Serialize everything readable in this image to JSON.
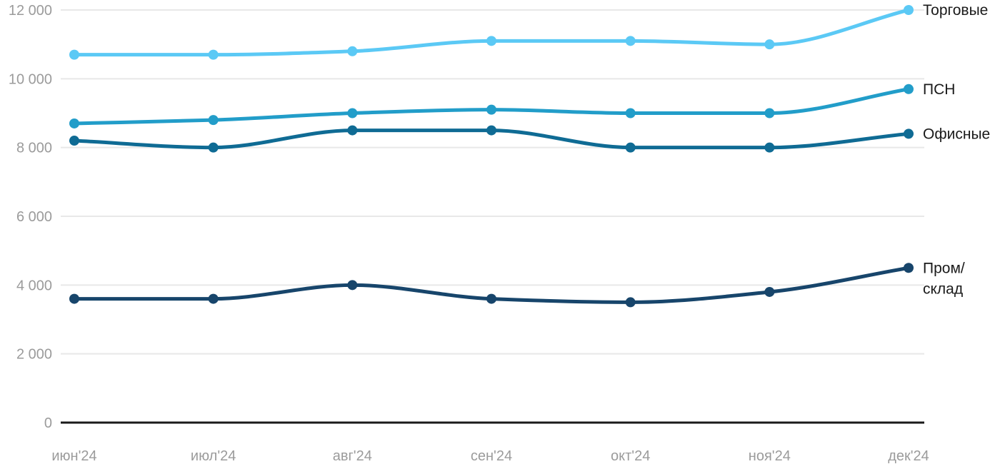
{
  "chart_data": {
    "type": "line",
    "title": "",
    "xlabel": "",
    "ylabel": "",
    "categories": [
      "июн'24",
      "июл'24",
      "авг'24",
      "сен'24",
      "окт'24",
      "ноя'24",
      "дек'24"
    ],
    "series": [
      {
        "name": "Торговые",
        "label_lines": [
          "Торговые"
        ],
        "color": "#5BC9F5",
        "values": [
          10700,
          10700,
          10800,
          11100,
          11100,
          11000,
          12000
        ]
      },
      {
        "name": "ПСН",
        "label_lines": [
          "ПСН"
        ],
        "color": "#229DC9",
        "values": [
          8700,
          8800,
          9000,
          9100,
          9000,
          9000,
          9700
        ]
      },
      {
        "name": "Офисные",
        "label_lines": [
          "Офисные"
        ],
        "color": "#0F6B94",
        "values": [
          8200,
          8000,
          8500,
          8500,
          8000,
          8000,
          8400
        ]
      },
      {
        "name": "Пром/склад",
        "label_lines": [
          "Пром/",
          "склад"
        ],
        "color": "#17456B",
        "values": [
          3600,
          3600,
          4000,
          3600,
          3500,
          3800,
          4500
        ]
      }
    ],
    "yticks": [
      0,
      2000,
      4000,
      6000,
      8000,
      10000,
      12000
    ],
    "ytick_labels": [
      "0",
      "2 000",
      "4 000",
      "6 000",
      "8 000",
      "10 000",
      "12 000"
    ],
    "ylim": [
      0,
      12000
    ],
    "grid": "horizontal",
    "legend_position": "right-of-line-end",
    "colors": {
      "background": "#FFFFFF",
      "gridline": "#E8E8E8",
      "axis_line": "#1A1A1A",
      "tick_text": "#9B9B9B",
      "series_label_text": "#1A1A1A"
    }
  }
}
